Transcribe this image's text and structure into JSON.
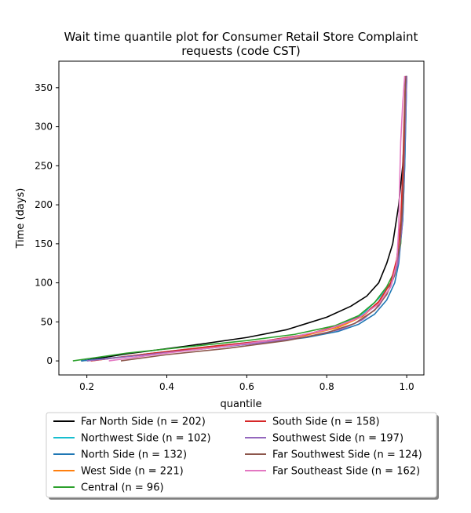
{
  "chart_data": {
    "type": "line",
    "title_line1": "Wait time quantile plot for Consumer Retail Store Complaint",
    "title_line2": "requests (code CST)",
    "xlabel": "quantile",
    "ylabel": "Time (days)",
    "xlim": [
      0.13,
      1.043
    ],
    "ylim": [
      -18,
      384
    ],
    "xticks": [
      0.2,
      0.4,
      0.6,
      0.8,
      1.0
    ],
    "xtick_labels": [
      "0.2",
      "0.4",
      "0.6",
      "0.8",
      "1.0"
    ],
    "yticks": [
      0,
      50,
      100,
      150,
      200,
      250,
      300,
      350
    ],
    "ytick_labels": [
      "0",
      "50",
      "100",
      "150",
      "200",
      "250",
      "300",
      "350"
    ],
    "grid": false,
    "legend_position": "below",
    "series": [
      {
        "name": "Far North Side (n = 202)",
        "color": "#000000",
        "x": [
          0.188,
          0.3,
          0.45,
          0.6,
          0.7,
          0.8,
          0.86,
          0.9,
          0.93,
          0.95,
          0.965,
          0.98,
          0.99,
          0.995,
          1.0
        ],
        "y": [
          0,
          9,
          19,
          30,
          40,
          56,
          70,
          83,
          100,
          125,
          150,
          200,
          250,
          300,
          365
        ]
      },
      {
        "name": "Northwest Side (n = 102)",
        "color": "#17becf",
        "x": [
          0.2,
          0.35,
          0.5,
          0.65,
          0.75,
          0.83,
          0.89,
          0.93,
          0.96,
          0.98,
          0.99,
          0.995,
          1.0
        ],
        "y": [
          0,
          9,
          18,
          26,
          34,
          45,
          60,
          80,
          100,
          130,
          180,
          250,
          365
        ]
      },
      {
        "name": "North Side (n = 132)",
        "color": "#1f77b4",
        "x": [
          0.185,
          0.35,
          0.5,
          0.65,
          0.75,
          0.83,
          0.88,
          0.92,
          0.95,
          0.97,
          0.98,
          0.99,
          0.995,
          1.0
        ],
        "y": [
          0,
          8,
          16,
          24,
          30,
          38,
          47,
          60,
          78,
          100,
          125,
          180,
          250,
          365
        ]
      },
      {
        "name": "West Side (n = 221)",
        "color": "#ff7f0e",
        "x": [
          0.21,
          0.35,
          0.5,
          0.65,
          0.75,
          0.83,
          0.89,
          0.93,
          0.96,
          0.975,
          0.985,
          0.99,
          0.995,
          1.0
        ],
        "y": [
          0,
          9,
          17,
          25,
          33,
          43,
          57,
          75,
          100,
          130,
          175,
          230,
          300,
          365
        ]
      },
      {
        "name": "Central (n = 96)",
        "color": "#2ca02c",
        "x": [
          0.165,
          0.3,
          0.45,
          0.6,
          0.72,
          0.82,
          0.88,
          0.92,
          0.95,
          0.97,
          0.985,
          0.992,
          0.995,
          1.0
        ],
        "y": [
          0,
          10,
          18,
          26,
          34,
          45,
          58,
          75,
          95,
          115,
          150,
          250,
          300,
          365
        ]
      },
      {
        "name": "South Side (n = 158)",
        "color": "#d62728",
        "x": [
          0.21,
          0.35,
          0.5,
          0.65,
          0.75,
          0.83,
          0.89,
          0.93,
          0.96,
          0.975,
          0.985,
          0.99,
          0.993,
          0.997
        ],
        "y": [
          0,
          9,
          18,
          26,
          34,
          45,
          58,
          76,
          100,
          130,
          180,
          240,
          300,
          365
        ]
      },
      {
        "name": "Southwest Side (n = 197)",
        "color": "#9467bd",
        "x": [
          0.2,
          0.35,
          0.5,
          0.65,
          0.75,
          0.84,
          0.89,
          0.93,
          0.96,
          0.978,
          0.988,
          0.993,
          0.996,
          1.0
        ],
        "y": [
          0,
          8,
          16,
          24,
          31,
          41,
          53,
          70,
          95,
          125,
          170,
          230,
          300,
          365
        ]
      },
      {
        "name": "Far Southwest Side (n = 124)",
        "color": "#8c564b",
        "x": [
          0.285,
          0.4,
          0.55,
          0.7,
          0.8,
          0.87,
          0.92,
          0.95,
          0.97,
          0.983,
          0.99,
          0.994,
          0.997
        ],
        "y": [
          0,
          8,
          16,
          26,
          36,
          48,
          65,
          85,
          110,
          150,
          200,
          280,
          365
        ]
      },
      {
        "name": "Far Southeast Side (n = 162)",
        "color": "#e377c2",
        "x": [
          0.255,
          0.4,
          0.55,
          0.7,
          0.8,
          0.88,
          0.93,
          0.96,
          0.975,
          0.98,
          0.983,
          0.985,
          0.99,
          0.995
        ],
        "y": [
          0,
          10,
          19,
          29,
          40,
          55,
          73,
          95,
          125,
          170,
          240,
          280,
          330,
          365
        ]
      }
    ]
  }
}
